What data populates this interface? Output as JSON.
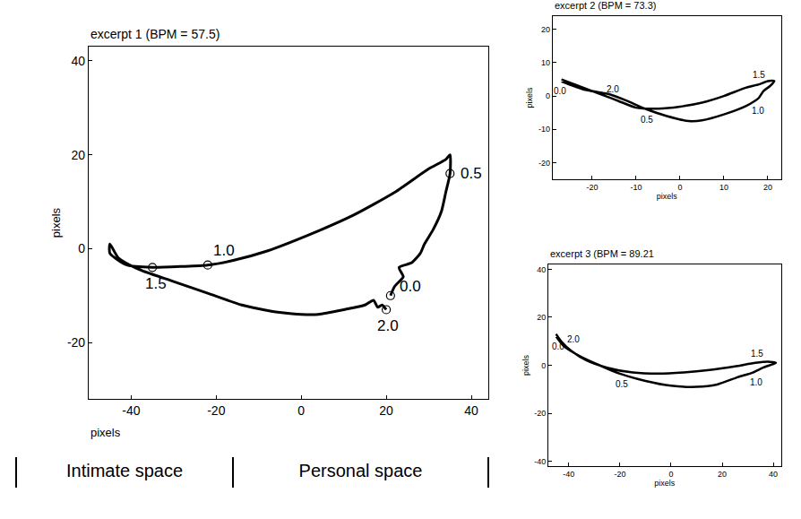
{
  "chart_data": [
    {
      "type": "line",
      "title": "excerpt 1 (BPM = 57.5)",
      "xlabel": "pixels",
      "ylabel": "pixels",
      "xlim": [
        -50,
        44
      ],
      "ylim": [
        -32,
        43
      ],
      "xticks": [
        -40,
        -20,
        0,
        20,
        40
      ],
      "yticks": [
        -20,
        0,
        20,
        40
      ],
      "grid": false,
      "marker": "circle",
      "series": [
        {
          "color": "#000000",
          "x": [
            21,
            22,
            24,
            23,
            26,
            28,
            29,
            31,
            33,
            34,
            35,
            35,
            34,
            30,
            22,
            12,
            2,
            -8,
            -16,
            -22,
            -28,
            -35,
            -41,
            -45,
            -45,
            -43,
            -38,
            -30,
            -22,
            -14,
            -6,
            0,
            4,
            10,
            15,
            17,
            18,
            19,
            20
          ],
          "y": [
            -10,
            -8,
            -6,
            -4,
            -3,
            -1,
            1,
            4,
            8,
            12,
            16,
            20,
            19,
            17,
            12,
            7,
            3,
            -0.5,
            -2.5,
            -3.5,
            -3.8,
            -4,
            -3.5,
            -1,
            1,
            -2,
            -4.5,
            -7,
            -9.5,
            -12,
            -13.5,
            -14,
            -14,
            -13,
            -12,
            -11,
            -12.5,
            -12,
            -13
          ]
        }
      ],
      "points": [
        {
          "label": "0.0",
          "x": 21,
          "y": -10
        },
        {
          "label": "0.5",
          "x": 35,
          "y": 16
        },
        {
          "label": "1.0",
          "x": -22,
          "y": -3.5
        },
        {
          "label": "1.5",
          "x": -35,
          "y": -4
        },
        {
          "label": "2.0",
          "x": 20,
          "y": -13
        }
      ],
      "regions": [
        {
          "label": "Intimate space",
          "from": -67,
          "to": -16
        },
        {
          "label": "Personal space",
          "from": -16,
          "to": 44
        }
      ]
    },
    {
      "type": "line",
      "title": "excerpt 2 (BPM = 73.3)",
      "xlabel": "pixels",
      "ylabel": "pixels",
      "xlim": [
        -29,
        23
      ],
      "ylim": [
        -25,
        24
      ],
      "xticks": [
        -20,
        -10,
        0,
        10,
        20
      ],
      "yticks": [
        -20,
        -10,
        0,
        10,
        20
      ],
      "grid": false,
      "marker": "none",
      "series": [
        {
          "color": "#000000",
          "x": [
            -27,
            -22,
            -16,
            -12,
            -8,
            -3,
            2,
            5,
            10,
            15,
            17,
            18,
            19,
            20.5,
            21.5,
            20,
            18,
            15,
            10,
            5,
            0,
            -5,
            -10,
            -14,
            -17,
            -20,
            -24,
            -27
          ],
          "y": [
            4.4,
            2,
            0.5,
            -1.5,
            -3.8,
            -6,
            -7.5,
            -7.3,
            -5.5,
            -3,
            -1.5,
            -0.5,
            1.5,
            3,
            4.5,
            4.5,
            3.5,
            2.5,
            0,
            -2,
            -3.2,
            -3.8,
            -3.5,
            -1.5,
            0,
            1.5,
            3.5,
            5
          ]
        }
      ],
      "points": [
        {
          "label": "0.0",
          "x": -27,
          "y": 4.4
        },
        {
          "label": "0.5",
          "x": -8,
          "y": -3.8
        },
        {
          "label": "1.0",
          "x": 17,
          "y": -1.5
        },
        {
          "label": "1.5",
          "x": 18,
          "y": 3.5
        },
        {
          "label": "2.0",
          "x": -17,
          "y": 0
        }
      ]
    },
    {
      "type": "line",
      "title": "excerpt 3 (BPM = 89.21",
      "xlabel": "pixels",
      "ylabel": "pixels",
      "xlim": [
        -48,
        43
      ],
      "ylim": [
        -42,
        42
      ],
      "xticks": [
        -40,
        -20,
        0,
        20,
        40
      ],
      "yticks": [
        -40,
        -20,
        0,
        20,
        40
      ],
      "grid": false,
      "marker": "none",
      "series": [
        {
          "color": "#000000",
          "x": [
            -45,
            -42,
            -36,
            -28,
            -20,
            -10,
            0,
            10,
            18,
            26,
            32,
            36,
            40,
            41,
            38,
            33,
            25,
            15,
            5,
            -5,
            -15,
            -25,
            -33,
            -39,
            -43,
            -45
          ],
          "y": [
            12,
            8,
            4,
            0,
            -3.5,
            -6.5,
            -8.5,
            -9,
            -8,
            -5,
            -3,
            -1,
            0.5,
            1,
            1.5,
            1,
            -0.5,
            -2,
            -3,
            -3.5,
            -3,
            -1,
            2,
            6,
            10,
            13
          ]
        }
      ],
      "points": [
        {
          "label": "0.0",
          "x": -45,
          "y": 12
        },
        {
          "label": "0.5",
          "x": -20,
          "y": -3.5
        },
        {
          "label": "1.0",
          "x": 32,
          "y": -3
        },
        {
          "label": "1.5",
          "x": 33,
          "y": 1
        },
        {
          "label": "2.0",
          "x": -43,
          "y": 10
        }
      ]
    }
  ]
}
